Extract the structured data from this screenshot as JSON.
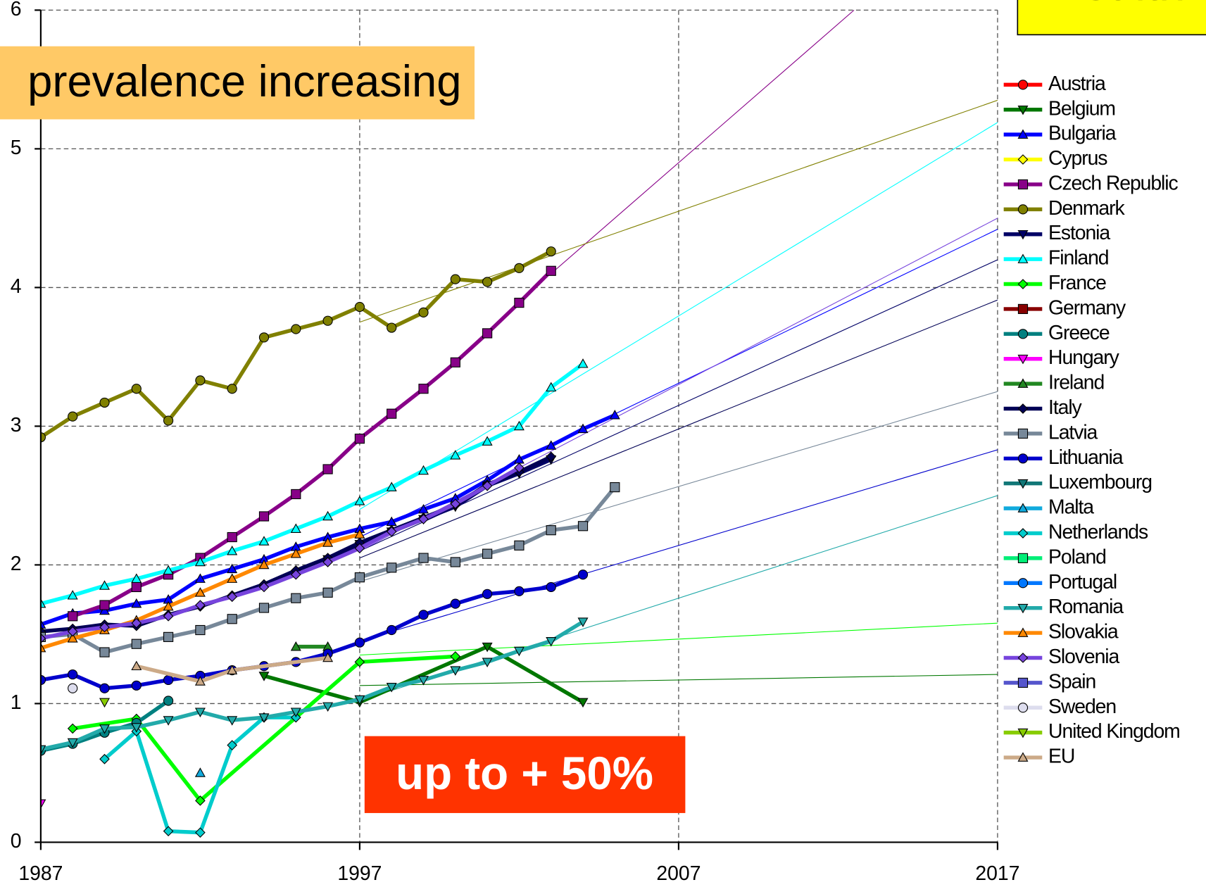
{
  "chart_data": {
    "type": "line",
    "annotations": [
      "prevalence increasing",
      "up to + 50%",
      "Health"
    ],
    "xlim": [
      1987,
      2017
    ],
    "xticks": [
      1987,
      1997,
      2007,
      2017
    ],
    "ylim": [
      0,
      6
    ],
    "yticks": [
      0,
      1,
      2,
      3,
      4,
      5,
      6
    ],
    "grid": true,
    "legend": "right",
    "series": [
      {
        "name": "Austria",
        "color": "#ff0000",
        "marker": "circle",
        "x": [],
        "values": []
      },
      {
        "name": "Belgium",
        "color": "#007700",
        "marker": "tridown",
        "x": [
          1994,
          1997,
          2001,
          2004
        ],
        "values": [
          1.2,
          1.01,
          1.41,
          1.01
        ],
        "trend": {
          "x": [
            1997,
            2017
          ],
          "values": [
            1.13,
            1.21
          ]
        }
      },
      {
        "name": "Bulgaria",
        "color": "#0000ff",
        "marker": "triup",
        "x": [
          1987,
          1988,
          1989,
          1990,
          1991,
          1992,
          1993,
          1994,
          1995,
          1996,
          1997,
          1998,
          1999,
          2000,
          2001,
          2002,
          2003,
          2004,
          2005
        ],
        "values": [
          1.57,
          1.65,
          1.67,
          1.72,
          1.75,
          1.9,
          1.97,
          2.04,
          2.13,
          2.2,
          2.26,
          2.31,
          2.4,
          2.48,
          2.61,
          2.76,
          2.86,
          2.98,
          3.08
        ],
        "trend": {
          "x": [
            1997,
            2017
          ],
          "values": [
            2.2,
            4.42
          ]
        }
      },
      {
        "name": "Cyprus",
        "color": "#ffff00",
        "marker": "diamond",
        "x": [],
        "values": []
      },
      {
        "name": "Czech Republic",
        "color": "#880088",
        "marker": "square",
        "x": [
          1988,
          1989,
          1990,
          1991,
          1992,
          1993,
          1994,
          1995,
          1996,
          1997,
          1998,
          1999,
          2000,
          2001,
          2002,
          2003
        ],
        "values": [
          1.63,
          1.71,
          1.84,
          1.93,
          2.05,
          2.2,
          2.35,
          2.51,
          2.69,
          2.91,
          3.09,
          3.27,
          3.46,
          3.67,
          3.89,
          4.12
        ],
        "trend": {
          "x": [
            2003,
            2012.5
          ],
          "values": [
            4.1,
            6
          ]
        }
      },
      {
        "name": "Denmark",
        "color": "#808000",
        "marker": "circle",
        "x": [
          1987,
          1988,
          1989,
          1990,
          1991,
          1992,
          1993,
          1994,
          1995,
          1996,
          1997,
          1998,
          1999,
          2000,
          2001,
          2002,
          2003
        ],
        "values": [
          2.92,
          3.07,
          3.17,
          3.27,
          3.04,
          3.33,
          3.27,
          3.64,
          3.7,
          3.76,
          3.86,
          3.71,
          3.82,
          4.06,
          4.04,
          4.14,
          4.26
        ],
        "trend": {
          "x": [
            1997,
            2017
          ],
          "values": [
            3.75,
            5.35
          ]
        }
      },
      {
        "name": "Estonia",
        "color": "#000066",
        "marker": "tridown",
        "x": [
          1996,
          1997,
          1998,
          1999,
          2000,
          2001,
          2002,
          2003
        ],
        "values": [
          2.04,
          2.15,
          2.24,
          2.33,
          2.42,
          2.57,
          2.66,
          2.76
        ],
        "trend": {
          "x": [
            1997,
            2017
          ],
          "values": [
            2.1,
            4.2
          ]
        }
      },
      {
        "name": "Finland",
        "color": "#00ffff",
        "marker": "triup",
        "x": [
          1987,
          1988,
          1989,
          1990,
          1991,
          1992,
          1993,
          1994,
          1995,
          1996,
          1997,
          1998,
          1999,
          2000,
          2001,
          2002,
          2003,
          2004
        ],
        "values": [
          1.72,
          1.78,
          1.85,
          1.9,
          1.96,
          2.02,
          2.1,
          2.17,
          2.26,
          2.35,
          2.46,
          2.56,
          2.68,
          2.79,
          2.89,
          3.0,
          3.28,
          3.45
        ],
        "trend": {
          "x": [
            1997,
            2017
          ],
          "values": [
            2.4,
            5.19
          ]
        }
      },
      {
        "name": "France",
        "color": "#00ff00",
        "marker": "diamond",
        "x": [
          1988,
          1990,
          1992,
          1997,
          2000
        ],
        "values": [
          0.82,
          0.89,
          0.3,
          1.3,
          1.34
        ],
        "trend": {
          "x": [
            1997,
            2017
          ],
          "values": [
            1.35,
            1.58
          ]
        }
      },
      {
        "name": "Germany",
        "color": "#880000",
        "marker": "square",
        "x": [],
        "values": []
      },
      {
        "name": "Greece",
        "color": "#008080",
        "marker": "circle",
        "x": [
          1987,
          1988,
          1989,
          1990,
          1991
        ],
        "values": [
          0.66,
          0.71,
          0.79,
          0.86,
          1.02
        ]
      },
      {
        "name": "Hungary",
        "color": "#ff00ff",
        "marker": "tridown",
        "x": [
          1987
        ],
        "values": [
          0.28
        ]
      },
      {
        "name": "Ireland",
        "color": "#228822",
        "marker": "triup",
        "x": [
          1995,
          1996
        ],
        "values": [
          1.41,
          1.41
        ]
      },
      {
        "name": "Italy",
        "color": "#000055",
        "marker": "diamond",
        "x": [
          1987,
          1988,
          1989,
          1990,
          1991,
          1992,
          1993,
          1994,
          1995,
          1996,
          1997,
          1998,
          1999,
          2000,
          2001,
          2002,
          2003
        ],
        "values": [
          1.52,
          1.54,
          1.57,
          1.56,
          1.64,
          1.7,
          1.78,
          1.86,
          1.96,
          2.05,
          2.16,
          2.25,
          2.34,
          2.43,
          2.58,
          2.67,
          2.78
        ],
        "trend": {
          "x": [
            1997,
            2017
          ],
          "values": [
            2.05,
            3.91
          ]
        }
      },
      {
        "name": "Latvia",
        "color": "#778899",
        "marker": "square",
        "x": [
          1987,
          1988,
          1989,
          1990,
          1991,
          1992,
          1993,
          1994,
          1995,
          1996,
          1997,
          1998,
          1999,
          2000,
          2001,
          2002,
          2003,
          2004,
          2005
        ],
        "values": [
          1.48,
          1.5,
          1.37,
          1.43,
          1.48,
          1.53,
          1.61,
          1.69,
          1.76,
          1.8,
          1.91,
          1.98,
          2.05,
          2.02,
          2.08,
          2.14,
          2.25,
          2.28,
          2.56
        ],
        "trend": {
          "x": [
            1997,
            2017
          ],
          "values": [
            1.88,
            3.25
          ]
        }
      },
      {
        "name": "Lithuania",
        "color": "#0000cc",
        "marker": "circle",
        "x": [
          1987,
          1988,
          1989,
          1990,
          1991,
          1992,
          1993,
          1994,
          1995,
          1996,
          1997,
          1998,
          1999,
          2000,
          2001,
          2002,
          2003,
          2004
        ],
        "values": [
          1.17,
          1.21,
          1.11,
          1.13,
          1.17,
          1.2,
          1.24,
          1.27,
          1.3,
          1.36,
          1.44,
          1.53,
          1.64,
          1.72,
          1.79,
          1.81,
          1.84,
          1.93
        ],
        "trend": {
          "x": [
            1997,
            2017
          ],
          "values": [
            1.45,
            2.83
          ]
        }
      },
      {
        "name": "Luxembourg",
        "color": "#117777",
        "marker": "tridown",
        "x": [],
        "values": []
      },
      {
        "name": "Malta",
        "color": "#11aadd",
        "marker": "triup",
        "x": [
          1992
        ],
        "values": [
          0.5
        ]
      },
      {
        "name": "Netherlands",
        "color": "#00cccc",
        "marker": "diamond",
        "x": [
          1989,
          1990,
          1991,
          1992,
          1993,
          1994,
          1995
        ],
        "values": [
          0.6,
          0.8,
          0.08,
          0.07,
          0.7,
          0.9,
          0.9
        ]
      },
      {
        "name": "Poland",
        "color": "#00ee77",
        "marker": "square",
        "x": [],
        "values": []
      },
      {
        "name": "Portugal",
        "color": "#0077ff",
        "marker": "circle",
        "x": [],
        "values": []
      },
      {
        "name": "Romania",
        "color": "#22aaaa",
        "marker": "tridown",
        "x": [
          1987,
          1988,
          1989,
          1990,
          1991,
          1992,
          1993,
          1994,
          1995,
          1996,
          1997,
          1998,
          1999,
          2000,
          2001,
          2002,
          2003,
          2004
        ],
        "values": [
          0.67,
          0.72,
          0.82,
          0.83,
          0.88,
          0.94,
          0.88,
          0.9,
          0.94,
          0.98,
          1.03,
          1.12,
          1.17,
          1.24,
          1.3,
          1.38,
          1.45,
          1.59
        ],
        "trend": {
          "x": [
            1997,
            2017
          ],
          "values": [
            1.02,
            2.5
          ]
        }
      },
      {
        "name": "Slovakia",
        "color": "#ff8800",
        "marker": "triup",
        "x": [
          1987,
          1988,
          1989,
          1990,
          1991,
          1992,
          1993,
          1994,
          1995,
          1996,
          1997
        ],
        "values": [
          1.4,
          1.47,
          1.53,
          1.6,
          1.7,
          1.8,
          1.9,
          2.0,
          2.08,
          2.16,
          2.22
        ]
      },
      {
        "name": "Slovenia",
        "color": "#7744dd",
        "marker": "diamond",
        "x": [
          1987,
          1988,
          1989,
          1990,
          1991,
          1992,
          1993,
          1994,
          1995,
          1996,
          1997,
          1998,
          1999,
          2000,
          2001,
          2002
        ],
        "values": [
          1.47,
          1.52,
          1.55,
          1.58,
          1.63,
          1.71,
          1.77,
          1.84,
          1.93,
          2.02,
          2.12,
          2.24,
          2.33,
          2.44,
          2.57,
          2.7
        ],
        "trend": {
          "x": [
            1997,
            2017
          ],
          "values": [
            2.1,
            4.5
          ]
        }
      },
      {
        "name": "Spain",
        "color": "#5555cc",
        "marker": "square",
        "x": [],
        "values": []
      },
      {
        "name": "Sweden",
        "color": "#ddddee",
        "marker": "circle",
        "x": [
          1988
        ],
        "values": [
          1.11
        ]
      },
      {
        "name": "United Kingdom",
        "color": "#88cc00",
        "marker": "tridown",
        "x": [
          1989
        ],
        "values": [
          1.01
        ]
      },
      {
        "name": "EU",
        "color": "#ccaa88",
        "marker": "triup",
        "x": [
          1990,
          1992,
          1993,
          1996
        ],
        "values": [
          1.27,
          1.16,
          1.24,
          1.33
        ]
      }
    ]
  }
}
